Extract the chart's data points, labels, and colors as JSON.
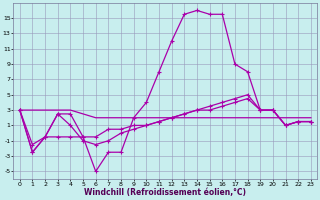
{
  "xlabel": "Windchill (Refroidissement éolien,°C)",
  "bg_color": "#c8eeee",
  "grid_color": "#9999bb",
  "line_color": "#aa00aa",
  "xlim": [
    -0.5,
    23.5
  ],
  "ylim": [
    -6,
    17
  ],
  "xticks": [
    0,
    1,
    2,
    3,
    4,
    5,
    6,
    7,
    8,
    9,
    10,
    11,
    12,
    13,
    14,
    15,
    16,
    17,
    18,
    19,
    20,
    21,
    22,
    23
  ],
  "yticks": [
    -5,
    -3,
    -1,
    1,
    3,
    5,
    7,
    9,
    11,
    13,
    15
  ],
  "line1_x": [
    0,
    1,
    2,
    3,
    4,
    5,
    6,
    7,
    8,
    9,
    10,
    11,
    12,
    13,
    14,
    15,
    16,
    17,
    18,
    19,
    20,
    21,
    22,
    23
  ],
  "line1_y": [
    3,
    -2.5,
    -0.5,
    2.5,
    2.5,
    -0.5,
    -5,
    -2.5,
    -2.5,
    2,
    4,
    8,
    12,
    15.5,
    16,
    15.5,
    15.5,
    9,
    8,
    3,
    3,
    1,
    1.5,
    1.5
  ],
  "line2_x": [
    0,
    1,
    2,
    3,
    4,
    5,
    6,
    7,
    8,
    9,
    10,
    11,
    12,
    13,
    14,
    15,
    16,
    17,
    18,
    19,
    20,
    21,
    22,
    23
  ],
  "line2_y": [
    3,
    -2.5,
    -0.5,
    2.5,
    1,
    -1,
    -1.5,
    -1,
    0,
    0.5,
    1,
    1.5,
    2,
    2.5,
    3,
    3,
    3.5,
    4,
    4.5,
    3,
    3,
    1,
    1.5,
    1.5
  ],
  "line3_x": [
    0,
    1,
    2,
    3,
    4,
    5,
    6,
    7,
    8,
    9,
    10,
    11,
    12,
    13,
    14,
    15,
    16,
    17,
    18,
    19,
    20,
    21,
    22,
    23
  ],
  "line3_y": [
    3,
    3,
    3,
    3,
    3,
    2.5,
    2,
    2,
    2,
    2,
    2,
    2,
    2,
    2,
    2,
    2,
    2,
    2,
    2,
    2,
    2,
    2,
    2,
    2
  ],
  "line4_x": [
    0,
    1,
    2,
    3,
    4,
    5,
    6,
    7,
    8,
    9,
    10,
    11,
    12,
    13,
    14,
    15,
    16,
    17,
    18,
    19,
    20,
    21,
    22,
    23
  ],
  "line4_y": [
    3,
    -1.5,
    -0.5,
    -0.5,
    -0.5,
    -0.5,
    -0.5,
    0.5,
    0.5,
    1,
    1,
    1.5,
    2,
    2.5,
    3,
    3.5,
    4,
    4.5,
    5,
    3,
    3,
    1,
    1.5,
    1.5
  ],
  "xlabel_fontsize": 5.5,
  "tick_fontsize": 4.5
}
